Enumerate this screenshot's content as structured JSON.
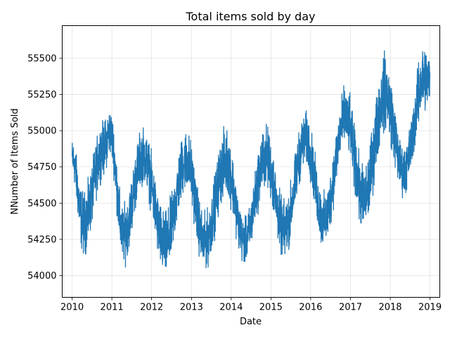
{
  "chart_data": {
    "type": "line",
    "title": "Total items sold by day",
    "xlabel": "Date",
    "ylabel": "NNumber of Items Sold",
    "x_range": [
      "2009-10-02",
      "2019-04-01"
    ],
    "ylim": [
      53850,
      55725
    ],
    "x_ticks": [
      "2010",
      "2011",
      "2012",
      "2013",
      "2014",
      "2015",
      "2016",
      "2017",
      "2018",
      "2019"
    ],
    "y_ticks": [
      54000,
      54250,
      54500,
      54750,
      55000,
      55250,
      55500
    ],
    "grid": true,
    "legend": "none",
    "line_color": "#1f77b4",
    "series": [
      {
        "x_start": "2010-01-01",
        "x_end": "2018-12-31",
        "frequency": "daily",
        "envelope": [
          {
            "date": "2010-01-01",
            "low": 54650,
            "high": 54970
          },
          {
            "date": "2010-04-15",
            "low": 54100,
            "high": 54620
          },
          {
            "date": "2010-10-15",
            "low": 54650,
            "high": 55100
          },
          {
            "date": "2010-12-15",
            "low": 54800,
            "high": 55180
          },
          {
            "date": "2011-04-15",
            "low": 54040,
            "high": 54520
          },
          {
            "date": "2011-10-15",
            "low": 54600,
            "high": 55060
          },
          {
            "date": "2012-05-01",
            "low": 53940,
            "high": 54480
          },
          {
            "date": "2012-11-15",
            "low": 54550,
            "high": 55050
          },
          {
            "date": "2013-05-01",
            "low": 54000,
            "high": 54460
          },
          {
            "date": "2013-11-15",
            "low": 54520,
            "high": 55060
          },
          {
            "date": "2014-05-01",
            "low": 54050,
            "high": 54420
          },
          {
            "date": "2014-11-15",
            "low": 54560,
            "high": 55080
          },
          {
            "date": "2015-05-01",
            "low": 54080,
            "high": 54550
          },
          {
            "date": "2015-11-15",
            "low": 54720,
            "high": 55160
          },
          {
            "date": "2016-05-01",
            "low": 54150,
            "high": 54600
          },
          {
            "date": "2016-11-15",
            "low": 54850,
            "high": 55340
          },
          {
            "date": "2017-05-01",
            "low": 54250,
            "high": 54800
          },
          {
            "date": "2017-11-15",
            "low": 54950,
            "high": 55570
          },
          {
            "date": "2018-05-01",
            "low": 54520,
            "high": 54920
          },
          {
            "date": "2018-11-15",
            "low": 55100,
            "high": 55640
          },
          {
            "date": "2018-12-31",
            "low": 55150,
            "high": 55550
          }
        ]
      }
    ]
  }
}
